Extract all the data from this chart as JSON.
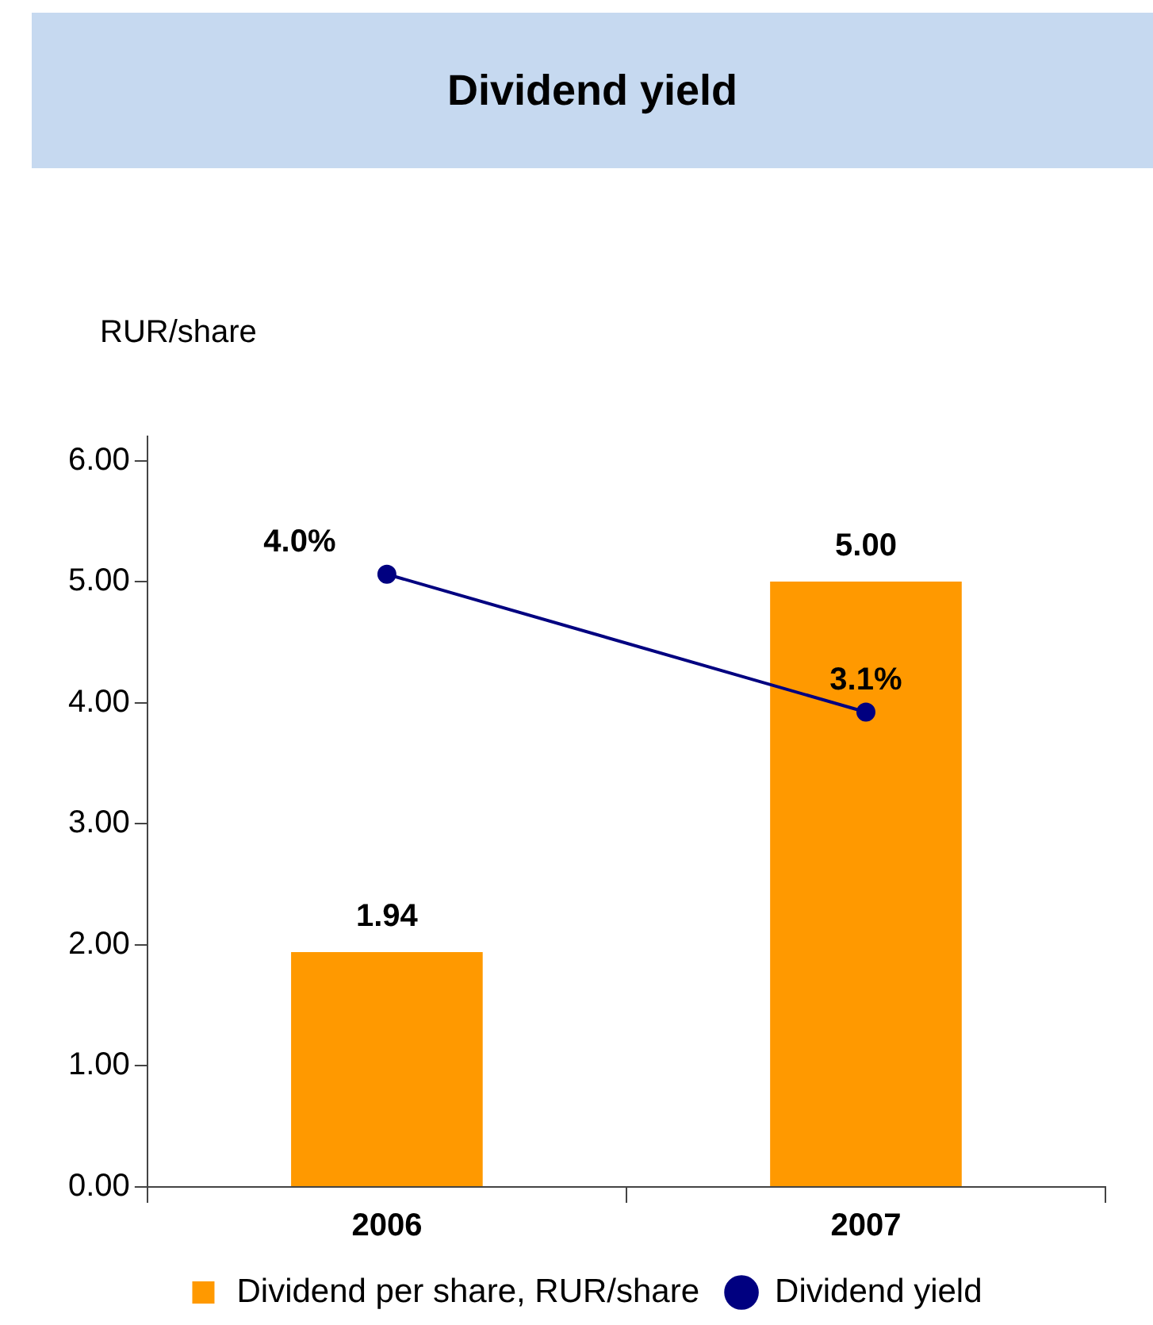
{
  "chart_data": {
    "type": "bar",
    "title": "Dividend yield",
    "ylabel": "RUR/share",
    "categories": [
      "2006",
      "2007"
    ],
    "series": [
      {
        "name": "Dividend per share, RUR/share",
        "color": "#ff9900",
        "values": [
          1.94,
          5.0
        ],
        "value_labels": [
          "1.94",
          "5.00"
        ]
      },
      {
        "name": "Dividend yield",
        "type": "line",
        "axis": "y2",
        "color": "#000080",
        "values": [
          4.0,
          3.1
        ],
        "value_labels": [
          "4.0%",
          "3.1%"
        ]
      }
    ],
    "ylim": [
      0,
      6.2
    ],
    "yticks": [
      {
        "value": 0,
        "label": "0.00"
      },
      {
        "value": 1,
        "label": "1.00"
      },
      {
        "value": 2,
        "label": "2.00"
      },
      {
        "value": 3,
        "label": "3.00"
      },
      {
        "value": 4,
        "label": "4.00"
      },
      {
        "value": 5,
        "label": "5.00"
      },
      {
        "value": 6,
        "label": "6.00"
      }
    ],
    "y2lim": [
      0,
      4.9
    ],
    "grid": false,
    "legend": "bottom",
    "marker": "circle",
    "line_style": "solid"
  }
}
